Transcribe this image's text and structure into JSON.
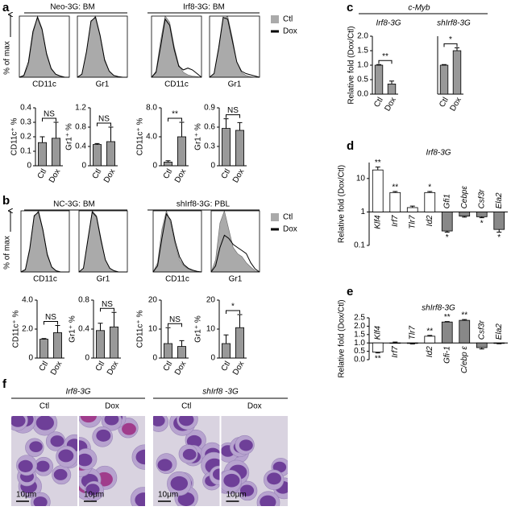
{
  "panel_letters": [
    "a",
    "b",
    "c",
    "d",
    "e",
    "f"
  ],
  "group_headers": [
    "Neo-3G: BM",
    "Irf8-3G: BM",
    "NC-3G: BM",
    "shIrf8-3G: PBL"
  ],
  "flow_axis_labels": [
    "% of max",
    "% of max"
  ],
  "legends": [
    [
      {
        "name": "Ctl",
        "color": "#aaaaaa"
      },
      {
        "name": "Dox",
        "color": "#000000"
      }
    ],
    [
      {
        "name": "Ctl",
        "color": "#aaaaaa"
      },
      {
        "name": "Dox",
        "color": "#000000"
      }
    ]
  ],
  "c_header": "c-Myb",
  "images": [
    {
      "title": "Irf8-3G",
      "columns": [
        "Ctl",
        "Dox"
      ],
      "scale_bars": [
        "10μm",
        "10μm"
      ]
    },
    {
      "title": "shIrf8 -3G",
      "columns": [
        "Ctl",
        "Dox"
      ],
      "scale_bars": [
        "10μm",
        "10μm"
      ]
    }
  ],
  "chart_data": [
    {
      "type": "flow",
      "xlabel": "CD11c",
      "xlim": [
        0,
        11
      ],
      "ylim": [
        0,
        100
      ],
      "series": [
        {
          "color": "#aaaaaa",
          "values": [
            0,
            2,
            20,
            70,
            100,
            80,
            40,
            15,
            5,
            2,
            0,
            0
          ]
        },
        {
          "color": "#000000",
          "values": [
            0,
            3,
            25,
            75,
            98,
            78,
            38,
            14,
            5,
            2,
            0,
            0
          ]
        }
      ]
    },
    {
      "type": "flow",
      "xlabel": "Gr1",
      "xlim": [
        0,
        11
      ],
      "ylim": [
        0,
        100
      ],
      "series": [
        {
          "color": "#aaaaaa",
          "values": [
            0,
            5,
            40,
            90,
            100,
            70,
            30,
            10,
            3,
            1,
            0,
            0
          ]
        },
        {
          "color": "#000000",
          "values": [
            0,
            5,
            42,
            92,
            98,
            68,
            28,
            10,
            3,
            1,
            0,
            0
          ]
        }
      ]
    },
    {
      "type": "flow",
      "xlabel": "CD11c",
      "xlim": [
        0,
        11
      ],
      "ylim": [
        0,
        100
      ],
      "series": [
        {
          "color": "#aaaaaa",
          "values": [
            0,
            10,
            60,
            100,
            90,
            50,
            20,
            8,
            4,
            2,
            1,
            0
          ]
        },
        {
          "color": "#000000",
          "values": [
            0,
            8,
            50,
            95,
            85,
            45,
            18,
            12,
            15,
            12,
            6,
            0
          ]
        }
      ]
    },
    {
      "type": "flow",
      "xlabel": "Gr1",
      "xlim": [
        0,
        11
      ],
      "ylim": [
        0,
        100
      ],
      "series": [
        {
          "color": "#aaaaaa",
          "values": [
            0,
            6,
            45,
            95,
            100,
            65,
            25,
            8,
            3,
            1,
            0,
            0
          ]
        },
        {
          "color": "#000000",
          "values": [
            0,
            6,
            48,
            98,
            95,
            60,
            25,
            10,
            6,
            4,
            2,
            0
          ]
        }
      ]
    },
    {
      "type": "bar",
      "ylabel": "CD11c⁺ %",
      "categories": [
        "Ctl",
        "Dox"
      ],
      "values": [
        0.16,
        0.19
      ],
      "errors": [
        0.04,
        0.11
      ],
      "colors": [
        "#999999",
        "#999999"
      ],
      "annotation": "NS",
      "ylim": [
        0,
        0.4
      ],
      "yticks": [
        0,
        0.1,
        0.2,
        0.3,
        0.4
      ]
    },
    {
      "type": "bar",
      "ylabel": "Gr1⁺ %",
      "categories": [
        "Ctl",
        "Dox"
      ],
      "values": [
        0.44,
        0.5
      ],
      "errors": [
        0.02,
        0.3
      ],
      "colors": [
        "#999999",
        "#999999"
      ],
      "annotation": "NS",
      "ylim": [
        0,
        1.2
      ],
      "yticks": [
        0,
        0.4,
        0.8,
        1.2
      ]
    },
    {
      "type": "bar",
      "ylabel": "CD11c⁺ %",
      "categories": [
        "Ctl",
        "Dox"
      ],
      "values": [
        0.5,
        4.0
      ],
      "errors": [
        0.2,
        2.0
      ],
      "colors": [
        "#999999",
        "#999999"
      ],
      "annotation": "**",
      "ylim": [
        0,
        8
      ],
      "yticks": [
        0,
        {
          "value": 4,
          "label": "4.0"
        },
        {
          "value": 8,
          "label": "8.0"
        }
      ]
    },
    {
      "type": "bar",
      "ylabel": "Gr1⁺ %",
      "categories": [
        "Ctl",
        "Dox"
      ],
      "values": [
        0.58,
        0.55
      ],
      "errors": [
        0.15,
        0.12
      ],
      "colors": [
        "#999999",
        "#999999"
      ],
      "annotation": "NS",
      "ylim": [
        0,
        0.9
      ],
      "yticks": [
        0,
        0.3,
        0.6,
        0.9
      ]
    },
    {
      "type": "flow",
      "xlabel": "CD11c",
      "xlim": [
        0,
        11
      ],
      "ylim": [
        0,
        100
      ],
      "series": [
        {
          "color": "#aaaaaa",
          "values": [
            0,
            4,
            35,
            90,
            100,
            70,
            30,
            8,
            2,
            0,
            0,
            0
          ]
        },
        {
          "color": "#000000",
          "values": [
            0,
            4,
            38,
            92,
            98,
            68,
            28,
            8,
            2,
            0,
            0,
            0
          ]
        }
      ]
    },
    {
      "type": "flow",
      "xlabel": "Gr1",
      "xlim": [
        0,
        11
      ],
      "ylim": [
        0,
        100
      ],
      "series": [
        {
          "color": "#aaaaaa",
          "values": [
            0,
            6,
            50,
            100,
            92,
            55,
            20,
            6,
            2,
            0,
            0,
            0
          ]
        },
        {
          "color": "#000000",
          "values": [
            0,
            6,
            52,
            98,
            90,
            52,
            20,
            6,
            2,
            0,
            0,
            0
          ]
        }
      ]
    },
    {
      "type": "flow",
      "xlabel": "CD11c",
      "xlim": [
        0,
        11
      ],
      "ylim": [
        0,
        100
      ],
      "series": [
        {
          "color": "#aaaaaa",
          "values": [
            0,
            15,
            70,
            100,
            80,
            45,
            20,
            10,
            5,
            2,
            0,
            0
          ]
        },
        {
          "color": "#000000",
          "values": [
            0,
            10,
            55,
            95,
            85,
            50,
            25,
            12,
            6,
            3,
            1,
            0
          ]
        }
      ]
    },
    {
      "type": "flow",
      "xlabel": "Gr1",
      "xlim": [
        0,
        11
      ],
      "ylim": [
        0,
        100
      ],
      "series": [
        {
          "color": "#aaaaaa",
          "values": [
            0,
            20,
            80,
            100,
            70,
            40,
            30,
            25,
            15,
            8,
            2,
            0
          ]
        },
        {
          "color": "#000000",
          "values": [
            0,
            10,
            40,
            60,
            55,
            45,
            40,
            35,
            30,
            15,
            5,
            0
          ]
        }
      ]
    },
    {
      "type": "bar",
      "ylabel": "CD11c⁺ %",
      "categories": [
        "Ctl",
        "Dox"
      ],
      "values": [
        1.3,
        1.75
      ],
      "errors": [
        0.05,
        0.5
      ],
      "colors": [
        "#999999",
        "#999999"
      ],
      "annotation": "NS",
      "ylim": [
        0,
        4
      ],
      "yticks": [
        0,
        {
          "value": 2,
          "label": "2.0"
        },
        {
          "value": 4,
          "label": "4.0"
        }
      ]
    },
    {
      "type": "bar",
      "ylabel": "Gr1⁺ %",
      "categories": [
        "Ctl",
        "Dox"
      ],
      "values": [
        0.38,
        0.43
      ],
      "errors": [
        0.1,
        0.2
      ],
      "colors": [
        "#999999",
        "#999999"
      ],
      "annotation": "NS",
      "ylim": [
        0,
        0.8
      ],
      "yticks": [
        0,
        0.4,
        0.8
      ]
    },
    {
      "type": "bar",
      "ylabel": "CD11c⁺ %",
      "categories": [
        "Ctl",
        "Dox"
      ],
      "values": [
        5,
        4
      ],
      "errors": [
        5.5,
        2
      ],
      "colors": [
        "#999999",
        "#999999"
      ],
      "annotation": "NS",
      "ylim": [
        0,
        20
      ],
      "yticks": [
        0,
        10,
        20
      ]
    },
    {
      "type": "bar",
      "ylabel": "Gr1⁺ %",
      "categories": [
        "Ctl",
        "Dox"
      ],
      "values": [
        5,
        10.5
      ],
      "errors": [
        3,
        4.5
      ],
      "colors": [
        "#999999",
        "#999999"
      ],
      "annotation": "*",
      "ylim": [
        0,
        20
      ],
      "yticks": [
        0,
        10,
        20
      ]
    },
    {
      "type": "bar",
      "title": "Irf8-3G",
      "ylabel": "Relative fold (Dox/Ctl)",
      "categories": [
        "Ctl",
        "Dox"
      ],
      "values": [
        1.0,
        0.35
      ],
      "errors": [
        0.02,
        0.1
      ],
      "colors": [
        "#999999",
        "#999999"
      ],
      "annotation": "**",
      "ylim": [
        0,
        2
      ],
      "yticks": [
        {
          "value": 0,
          "label": "0.0"
        },
        {
          "value": 0.5,
          "label": "0.5"
        },
        {
          "value": 1,
          "label": "1.0"
        },
        {
          "value": 1.5,
          "label": "1.5"
        },
        {
          "value": 2,
          "label": "2.0"
        }
      ]
    },
    {
      "type": "bar",
      "title": "shIrf8-3G",
      "categories": [
        "Ctl",
        "Dox"
      ],
      "values": [
        1.0,
        1.5
      ],
      "errors": [
        0.02,
        0.1
      ],
      "colors": [
        "#999999",
        "#999999"
      ],
      "annotation": "*",
      "ylim": [
        0,
        2
      ]
    },
    {
      "type": "bar",
      "title": "Irf8-3G",
      "ylabel": "Relative fold (Dox/Ctl)",
      "log_scale": true,
      "origin": 1,
      "categories": [
        "Klf4",
        "Irf7",
        "Tlr7",
        "Id2",
        "Gfi1",
        "Cebpε",
        "Csf3r",
        "Ela2"
      ],
      "values": [
        18,
        3.8,
        1.35,
        3.8,
        0.27,
        0.75,
        0.72,
        0.3
      ],
      "errors": [
        4,
        0.3,
        0.15,
        0.3,
        0.02,
        0.05,
        0.05,
        0.05
      ],
      "colors": [
        "#ffffff",
        "#ffffff",
        "#ffffff",
        "#ffffff",
        "#888888",
        "#888888",
        "#888888",
        "#888888"
      ],
      "value_annotations": [
        "**",
        "**",
        null,
        "*",
        "*",
        null,
        "*",
        "*"
      ],
      "ylim": [
        0.1,
        30
      ],
      "yticks": [
        0.1,
        1,
        10
      ]
    },
    {
      "type": "bar",
      "title": "shIrf8-3G",
      "ylabel": "Relative fold (Dox/Ctl)",
      "origin": 1,
      "categories": [
        "Klf4",
        "Irf7",
        "Tlr7",
        "Id2",
        "Gfi-1",
        "C/ebp ε",
        "Csf3r",
        "Ela2"
      ],
      "values": [
        0.45,
        1.0,
        0.97,
        1.4,
        2.25,
        2.35,
        0.72,
        0.97
      ],
      "errors": [
        0.05,
        0.05,
        0.03,
        0.05,
        0.03,
        0.05,
        0.08,
        0.02
      ],
      "colors": [
        "#ffffff",
        "#888888",
        "#888888",
        "#ffffff",
        "#888888",
        "#888888",
        "#888888",
        "#888888"
      ],
      "value_annotations": [
        "**",
        null,
        null,
        "**",
        "**",
        "**",
        null,
        null
      ],
      "ylim": [
        0,
        2.5
      ],
      "yticks": [
        {
          "value": 0,
          "label": "0.0"
        },
        {
          "value": 0.5,
          "label": "0.5"
        },
        {
          "value": 1,
          "label": "1.0"
        },
        {
          "value": 1.5,
          "label": "1.5"
        },
        {
          "value": 2,
          "label": "2.0"
        },
        {
          "value": 2.5,
          "label": "2.5"
        }
      ]
    }
  ]
}
